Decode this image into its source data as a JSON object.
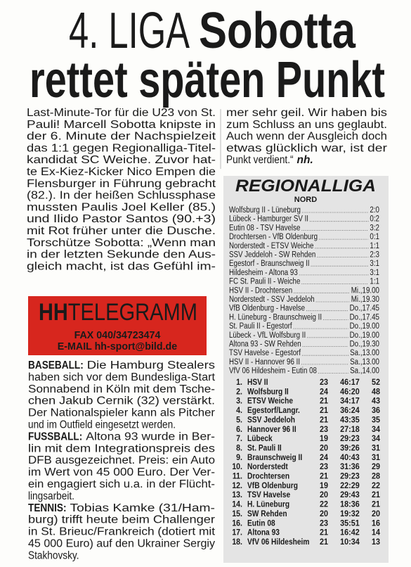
{
  "headline": {
    "kicker": "4. LIGA",
    "line1": "Sobotta",
    "line2": "rettet späten Punkt"
  },
  "article": {
    "column1": [
      "Last-Minute-Tor für die U23 von St.",
      "Pauli! Marcell Sobotta knipste in",
      "der 6. Minute der Nachspielzeit",
      "das 1:1 gegen Regionalliga-Titel-",
      "kandidat SC Weiche. Zuvor hat-",
      "te Ex-Kiez-Kicker Nico Empen die",
      "Flensburger in Führung gebracht",
      "(82.). In der heißen Schlussphase",
      "mussten Paulis Joel Keller (85.)",
      "und Ilido Pastor Santos (90.+3)",
      "mit Rot früher unter die Dusche.",
      "Torschütze Sobotta: „Wenn man",
      "in der letzten Sekunde den Aus-",
      "gleich macht, ist das Gefühl im-"
    ],
    "column2": [
      "mer sehr geil. Wir haben bis",
      "zum Schluss an uns geglaubt.",
      "Auch wenn der Ausgleich doch",
      "etwas glücklich war, ist der",
      "Punkt verdient.“"
    ],
    "author": "nh."
  },
  "hh_telegramm": {
    "brand_bold": "HH",
    "brand_light": "TELEGRAMM",
    "fax": "FAX 040/34723474",
    "email": "E-MAIL hh-sport@bild.de"
  },
  "briefs": [
    {
      "label": "BASEBALL:",
      "lines": [
        "Die Hamburg Stealers",
        "haben sich vor dem Bundesliga-Start",
        "Sonnabend in Köln mit dem Tsche-",
        "chen Jakub Cernik (32) verstärkt.",
        "Der Nationalspieler kann als Pitcher",
        "und im Outfield eingesetzt werden."
      ]
    },
    {
      "label": "FUSSBALL:",
      "lines": [
        "Altona 93 wurde in Ber-",
        "lin mit dem Integrationspreis des",
        "DFB ausgezeichnet. Preis: ein Auto",
        "im Wert von 45 000 Euro. Der Ver-",
        "ein engagiert sich u.a. in der Flücht-",
        "lingsarbeit."
      ]
    },
    {
      "label": "TENNIS:",
      "lines": [
        "Tobias Kamke (31/Ham-",
        "burg) trifft heute beim Challenger",
        "in St. Brieuc/Frankreich (dotiert mit",
        "45 000 Euro) auf den Ukrainer Sergiy",
        "Stakhovsky."
      ]
    }
  ],
  "regionalliga": {
    "title": "REGIONALLIGA",
    "subtitle": "NORD",
    "results": [
      {
        "match": "Wolfsburg II - Lüneburg",
        "score": "2:0"
      },
      {
        "match": "Lübeck - Hamburger SV II",
        "score": "0:2"
      },
      {
        "match": "Eutin 08 - TSV Havelse",
        "score": "3:2"
      },
      {
        "match": "Drochtersen - VfB Oldenburg",
        "score": "0:1"
      },
      {
        "match": "Norderstedt - ETSV Weiche",
        "score": "1:1"
      },
      {
        "match": "SSV Jeddeloh - SW Rehden",
        "score": "2:3"
      },
      {
        "match": "Egestorf - Braunschweig II",
        "score": "3:1"
      },
      {
        "match": "Hildesheim - Altona 93",
        "score": "3:1"
      },
      {
        "match": "FC St. Pauli II - Weiche",
        "score": "1:1"
      }
    ],
    "fixtures": [
      {
        "match": "HSV II - Drochtersen",
        "time": "Mi.,19.00"
      },
      {
        "match": "Norderstedt - SSV Jeddeloh",
        "time": "Mi.,19.30"
      },
      {
        "match": "VfB Oldenburg - Havelse",
        "time": "Do.,17.45"
      },
      {
        "match": "H. Lüneburg - Braunschweig II",
        "time": "Do.,17.45"
      },
      {
        "match": "St. Pauli II - Egestorf",
        "time": "Do.,19.00"
      },
      {
        "match": "Lübeck - VfL Wolfsburg II",
        "time": "Do.,19.00"
      },
      {
        "match": "Altona 93 - SW Rehden",
        "time": "Do.,19.30"
      },
      {
        "match": "TSV Havelse - Egestorf",
        "time": "Sa.,13.00"
      },
      {
        "match": "HSV II - Hannover 96 II",
        "time": "Sa.,13.00"
      },
      {
        "match": "VfV 06 Hildesheim - Eutin 08",
        "time": "Sa.,14.00"
      }
    ],
    "table": [
      {
        "rank": "1.",
        "team": "HSV II",
        "games": 23,
        "goals": "46:17",
        "points": 52
      },
      {
        "rank": "2.",
        "team": "Wolfsburg II",
        "games": 24,
        "goals": "46:20",
        "points": 48
      },
      {
        "rank": "3.",
        "team": "ETSV Weiche",
        "games": 21,
        "goals": "34:17",
        "points": 43
      },
      {
        "rank": "4.",
        "team": "Egestorf/Langr.",
        "games": 21,
        "goals": "36:24",
        "points": 36
      },
      {
        "rank": "5.",
        "team": "SSV Jeddeloh",
        "games": 21,
        "goals": "43:35",
        "points": 35
      },
      {
        "rank": "6.",
        "team": "Hannover 96 II",
        "games": 23,
        "goals": "27:18",
        "points": 34
      },
      {
        "rank": "7.",
        "team": "Lübeck",
        "games": 19,
        "goals": "29:23",
        "points": 34
      },
      {
        "rank": "8.",
        "team": "St. Pauli II",
        "games": 20,
        "goals": "39:26",
        "points": 31
      },
      {
        "rank": "9.",
        "team": "Braunschweig II",
        "games": 24,
        "goals": "40:43",
        "points": 31
      },
      {
        "rank": "10.",
        "team": "Norderstedt",
        "games": 23,
        "goals": "31:36",
        "points": 29
      },
      {
        "rank": "11.",
        "team": "Drochtersen",
        "games": 21,
        "goals": "29:23",
        "points": 28
      },
      {
        "rank": "12.",
        "team": "VfB Oldenburg",
        "games": 19,
        "goals": "22:29",
        "points": 22
      },
      {
        "rank": "13.",
        "team": "TSV Havelse",
        "games": 20,
        "goals": "29:43",
        "points": 21
      },
      {
        "rank": "14.",
        "team": "H. Lüneburg",
        "games": 22,
        "goals": "18:36",
        "points": 21
      },
      {
        "rank": "15.",
        "team": "SW Rehden",
        "games": 20,
        "goals": "19:32",
        "points": 20
      },
      {
        "rank": "16.",
        "team": "Eutin 08",
        "games": 23,
        "goals": "35:51",
        "points": 16
      },
      {
        "rank": "17.",
        "team": "Altona 93",
        "games": 21,
        "goals": "16:42",
        "points": 14
      },
      {
        "rank": "18.",
        "team": "VfV 06 Hildesheim",
        "games": 21,
        "goals": "10:34",
        "points": 13
      }
    ]
  }
}
